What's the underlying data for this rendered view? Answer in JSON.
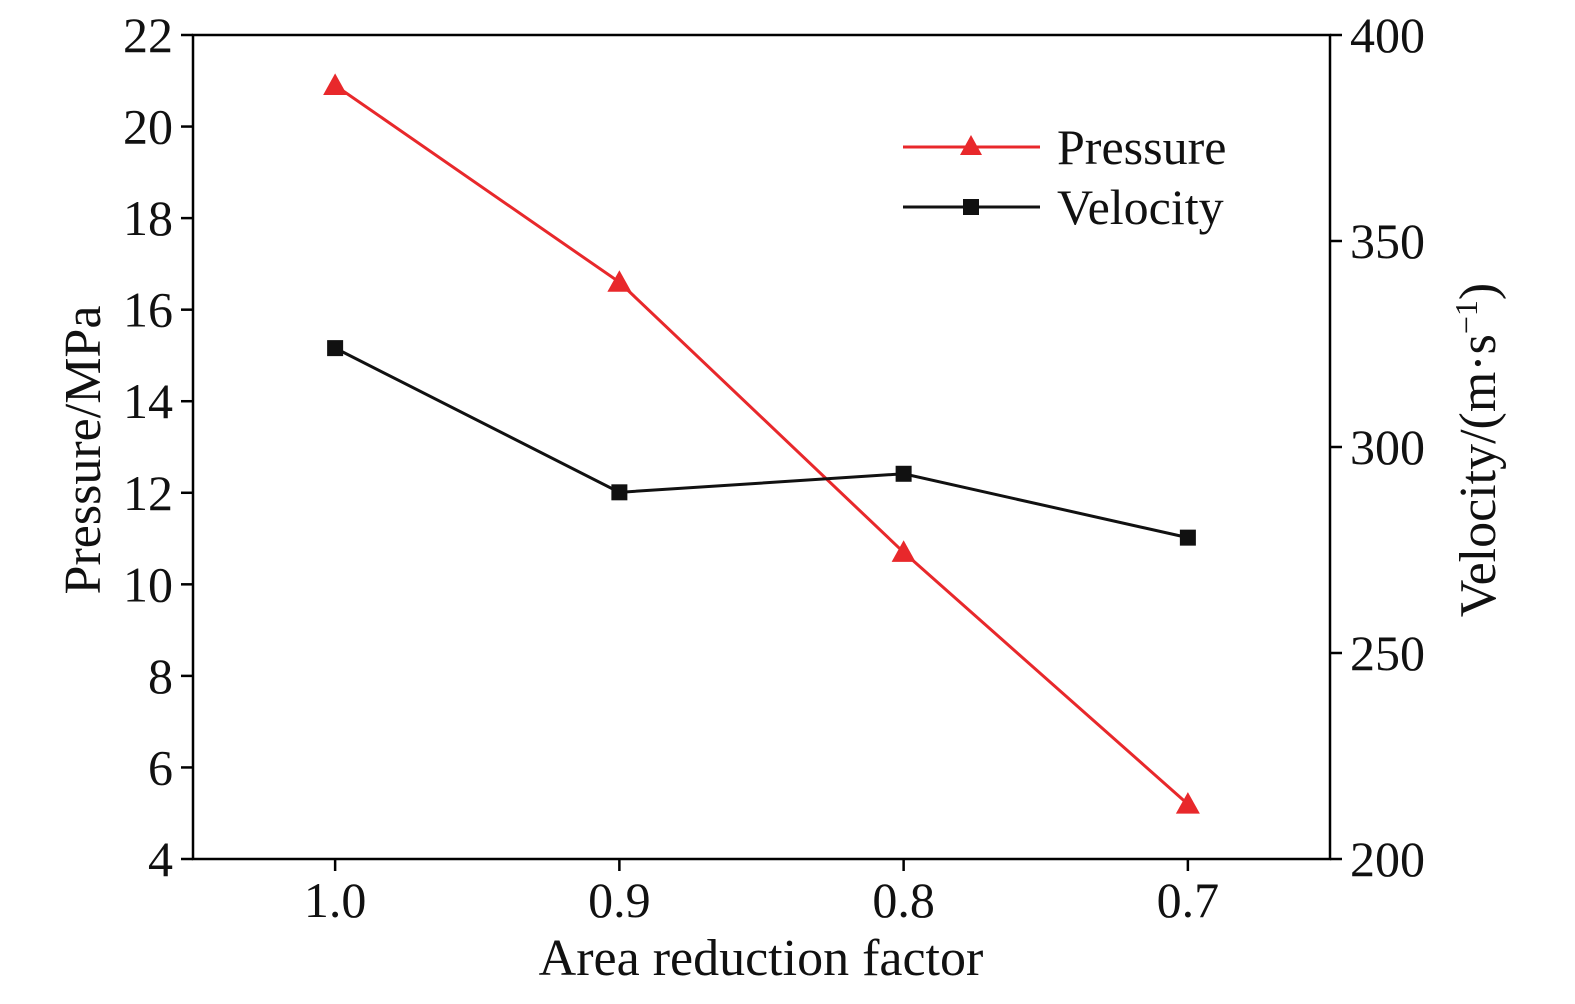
{
  "chart_data": {
    "type": "line",
    "xlabel": "Area reduction factor",
    "ylabel_left": "Pressure/MPa",
    "ylabel_right_main": "Velocity/(m·s",
    "ylabel_right_sup": "−1",
    "ylabel_right_end": ")",
    "x_tick_labels": [
      "1.0",
      "0.9",
      "0.8",
      "0.7"
    ],
    "x": [
      1.0,
      0.9,
      0.8,
      0.7
    ],
    "xlim": [
      1.05,
      0.65
    ],
    "ylim_left": [
      4,
      22
    ],
    "yticks_left": [
      "4",
      "6",
      "8",
      "10",
      "12",
      "14",
      "16",
      "18",
      "20",
      "22"
    ],
    "ylim_right": [
      200,
      400
    ],
    "yticks_right": [
      "200",
      "250",
      "300",
      "350",
      "400"
    ],
    "series": [
      {
        "name": "Pressure",
        "axis": "left",
        "color": "#e8282b",
        "marker": "triangle",
        "values": [
          20.9,
          16.6,
          10.7,
          5.2
        ]
      },
      {
        "name": "Velocity",
        "axis": "right",
        "color": "#111111",
        "marker": "square",
        "values": [
          324,
          289,
          293.5,
          278
        ]
      }
    ],
    "legend_position": "top-right",
    "grid": false
  }
}
